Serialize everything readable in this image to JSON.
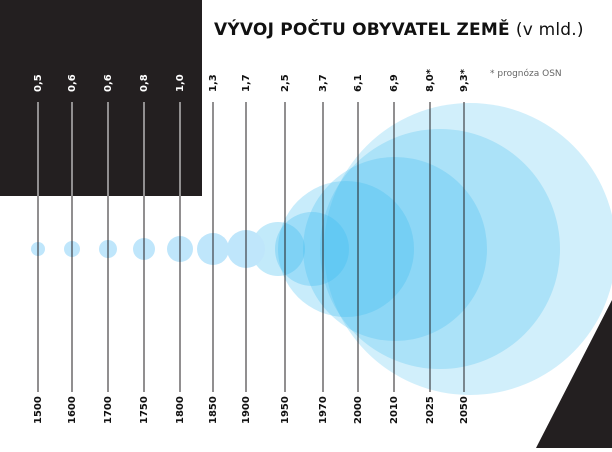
{
  "header": {
    "title_main": "VÝVOJ POČTU OBYVATEL ZEMĚ",
    "title_unit": "(v mld.)",
    "note": "* prognóza OSN"
  },
  "colors": {
    "background": "#ffffff",
    "dark_block": "#231f20",
    "bubble": "#3bbcf0",
    "bubble_light": "#bfe6fb",
    "line": "#231f20",
    "text": "#111111"
  },
  "chart_data": {
    "type": "bubble",
    "title": "VÝVOJ POČTU OBYVATEL ZEMĚ (v mld.)",
    "categories": [
      "1500",
      "1600",
      "1700",
      "1750",
      "1800",
      "1850",
      "1900",
      "1950",
      "1970",
      "2000",
      "2010",
      "2025",
      "2050"
    ],
    "values": [
      0.5,
      0.6,
      0.6,
      0.8,
      1.0,
      1.3,
      1.7,
      2.5,
      3.7,
      6.1,
      6.9,
      8.0,
      9.3
    ],
    "value_labels": [
      "0,5",
      "0,6",
      "0,6",
      "0,8",
      "1,0",
      "1,3",
      "1,7",
      "2,5",
      "3,7",
      "6,1",
      "6,9",
      "8,0*",
      "9,3*"
    ],
    "forecast": [
      false,
      false,
      false,
      false,
      false,
      false,
      false,
      false,
      false,
      false,
      false,
      true,
      true
    ],
    "unit": "mld.",
    "note": "* prognóza OSN"
  }
}
